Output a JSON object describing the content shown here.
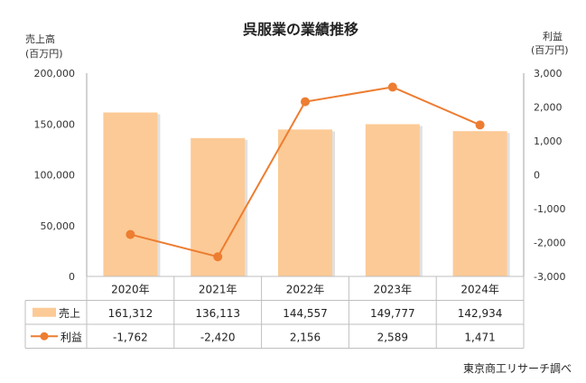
{
  "chart_data": {
    "type": "bar",
    "title": "呉服業の業績推移",
    "left_axis": {
      "label_line1": "売上高",
      "label_line2": "(百万円)",
      "ylim": [
        0,
        200000
      ],
      "ticks": [
        "0",
        "50,000",
        "100,000",
        "150,000",
        "200,000"
      ]
    },
    "right_axis": {
      "label_line1": "利益",
      "label_line2": "(百万円)",
      "ylim": [
        -3000,
        3000
      ],
      "ticks": [
        "-3,000",
        "-2,000",
        "-1,000",
        "0",
        "1,000",
        "2,000",
        "3,000"
      ]
    },
    "categories": [
      "2020年",
      "2021年",
      "2022年",
      "2023年",
      "2024年"
    ],
    "series": [
      {
        "name": "売上",
        "type": "bar",
        "axis": "left",
        "values": [
          161312,
          136113,
          144557,
          149777,
          142934
        ],
        "value_labels": [
          "161,312",
          "136,113",
          "144,557",
          "149,777",
          "142,934"
        ],
        "color": "#FCCA96"
      },
      {
        "name": "利益",
        "type": "line",
        "axis": "right",
        "values": [
          -1762,
          -2420,
          2156,
          2589,
          1471
        ],
        "value_labels": [
          "-1,762",
          "-2,420",
          "2,156",
          "2,589",
          "1,471"
        ],
        "color": "#ED7D31"
      }
    ],
    "grid": false,
    "legend": "data-table",
    "source": "東京商工リサーチ調べ"
  }
}
